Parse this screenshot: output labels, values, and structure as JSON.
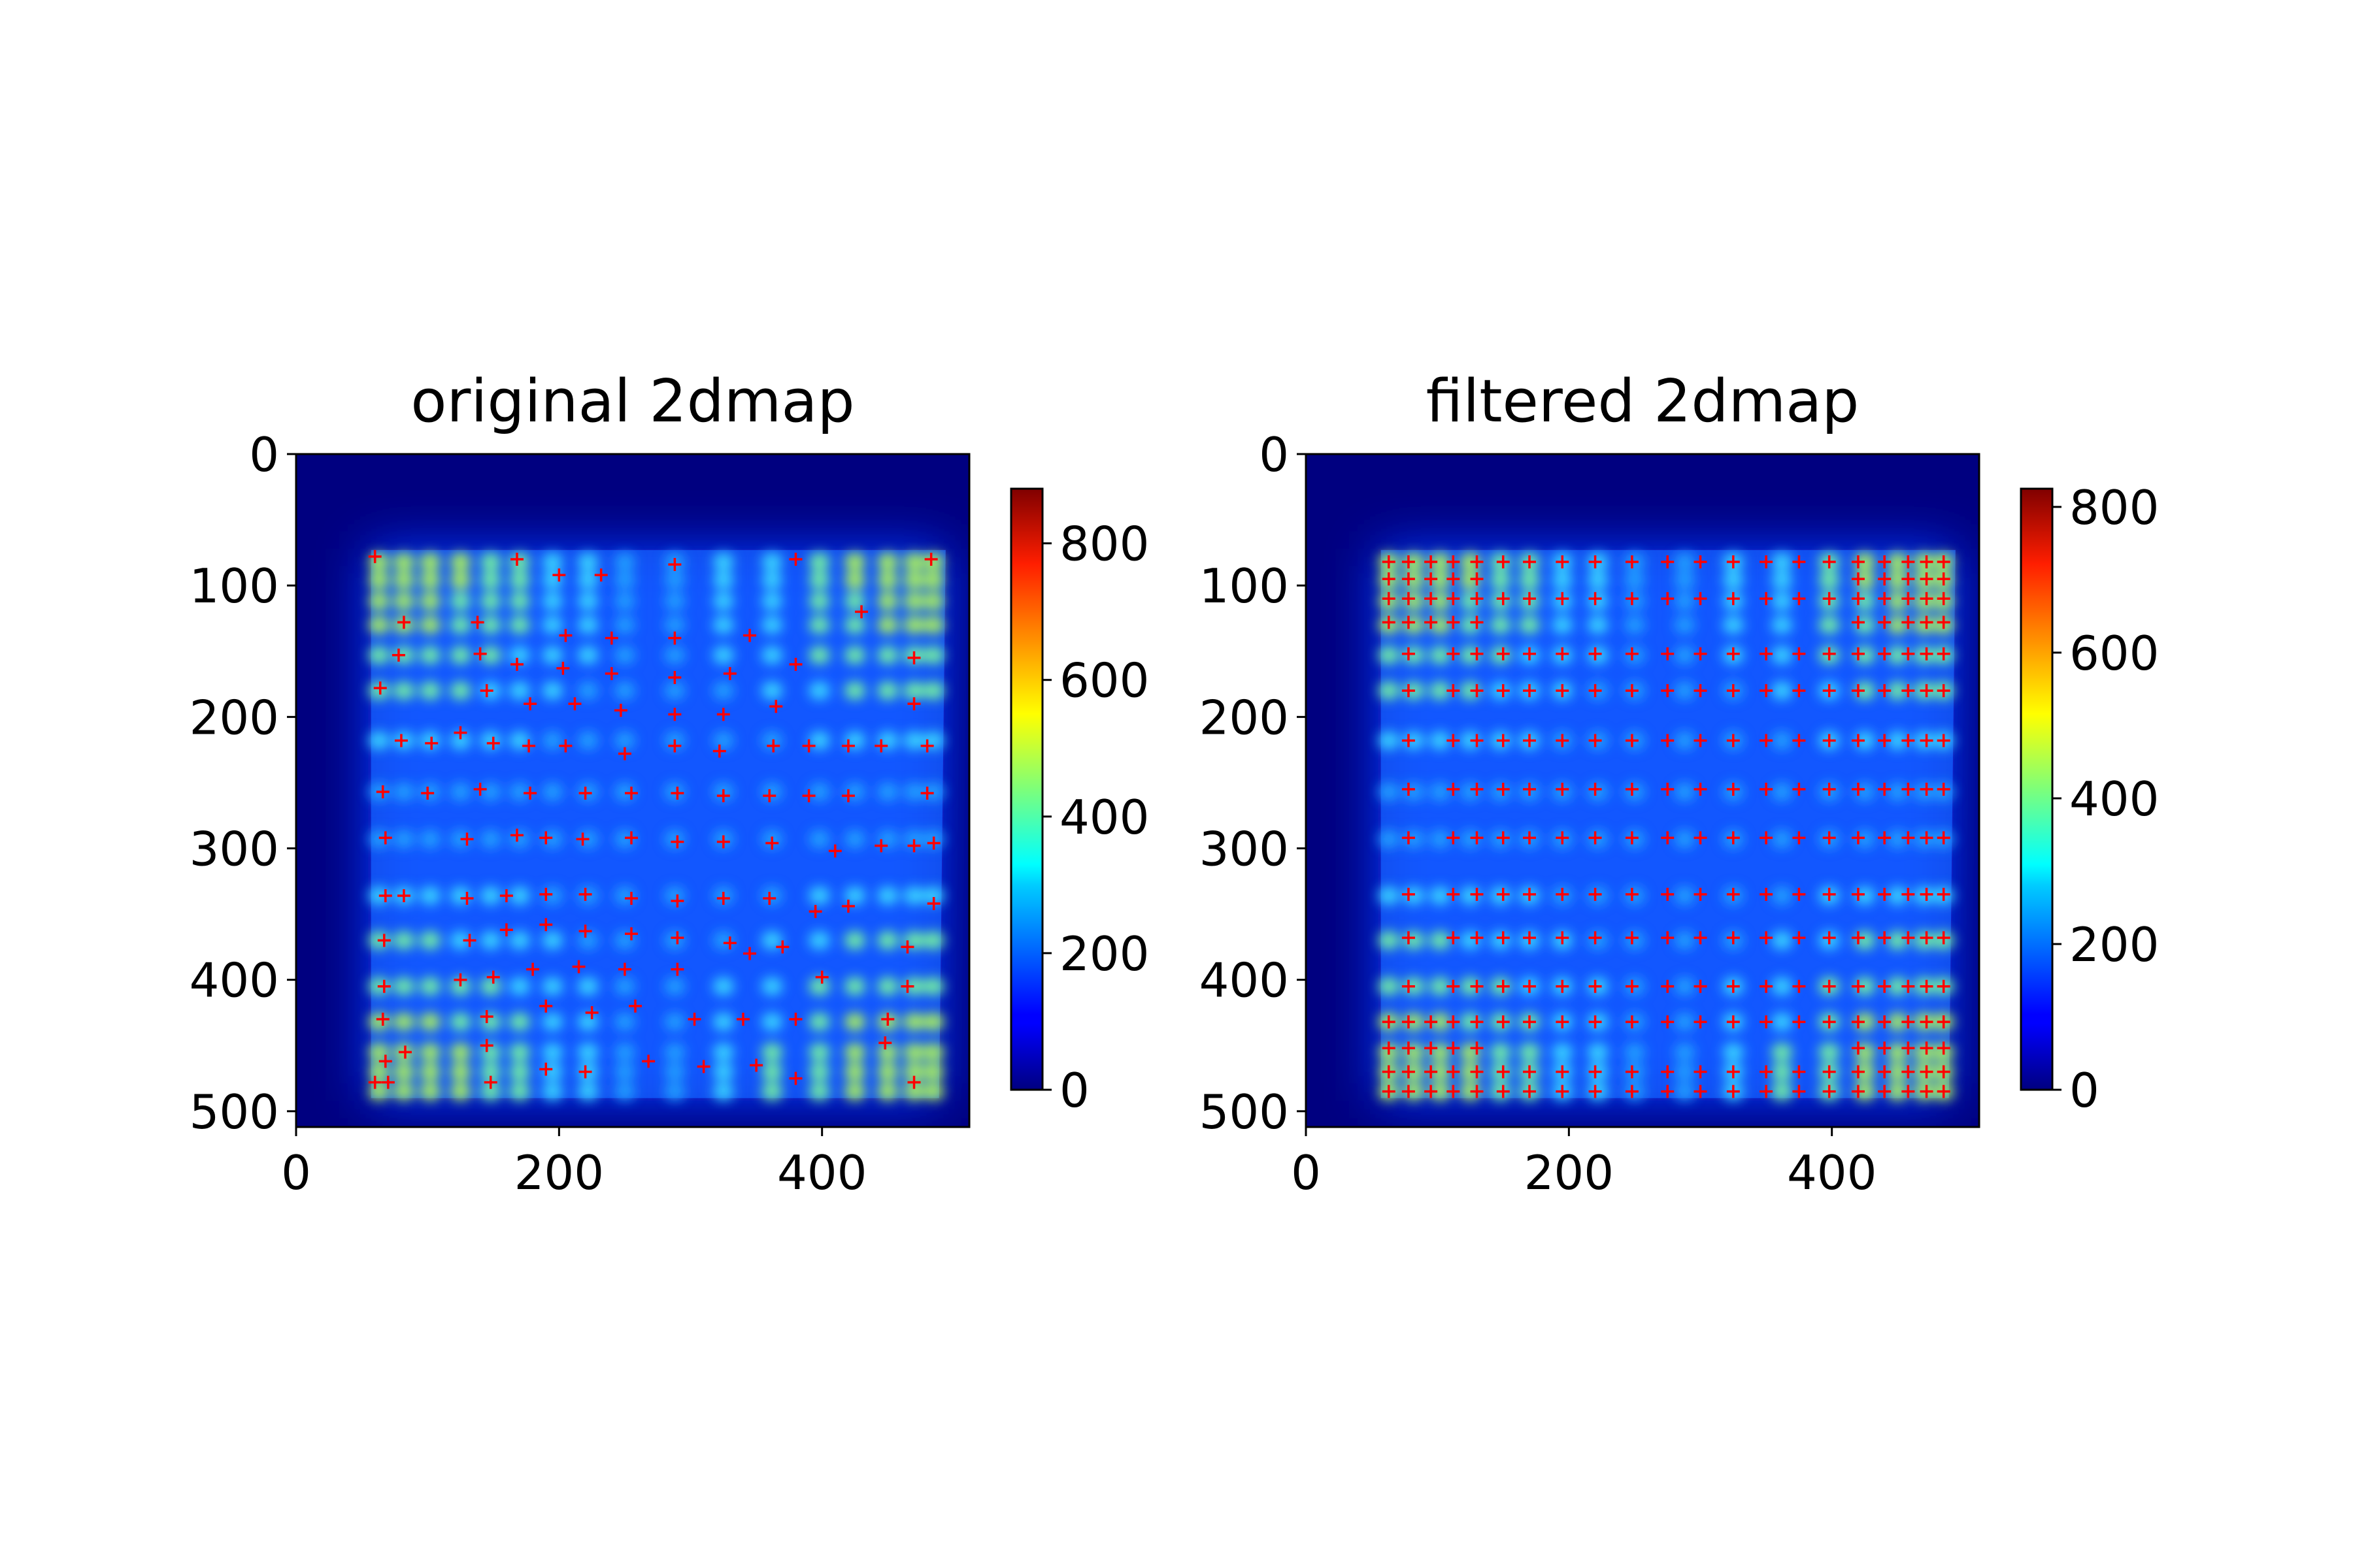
{
  "chart_data": [
    {
      "type": "heatmap",
      "title": "original 2dmap",
      "xlabel": "",
      "ylabel": "",
      "colormap": "jet",
      "xlim": [
        0,
        512
      ],
      "ylim": [
        512,
        0
      ],
      "xticks": [
        "0",
        "200",
        "400"
      ],
      "yticks": [
        "0",
        "100",
        "200",
        "300",
        "400",
        "500"
      ],
      "colorbar": {
        "range": [
          0,
          880
        ],
        "ticks": [
          "0",
          "200",
          "400",
          "600",
          "800"
        ]
      },
      "marker_color": "#ff0000",
      "markers": [
        [
          60,
          78
        ],
        [
          168,
          80
        ],
        [
          380,
          80
        ],
        [
          483,
          80
        ],
        [
          200,
          92
        ],
        [
          232,
          92
        ],
        [
          288,
          84
        ],
        [
          82,
          128
        ],
        [
          138,
          128
        ],
        [
          205,
          138
        ],
        [
          240,
          140
        ],
        [
          288,
          140
        ],
        [
          345,
          138
        ],
        [
          430,
          120
        ],
        [
          470,
          155
        ],
        [
          78,
          153
        ],
        [
          140,
          152
        ],
        [
          168,
          160
        ],
        [
          203,
          163
        ],
        [
          240,
          167
        ],
        [
          288,
          170
        ],
        [
          330,
          167
        ],
        [
          380,
          160
        ],
        [
          64,
          178
        ],
        [
          145,
          180
        ],
        [
          178,
          190
        ],
        [
          212,
          190
        ],
        [
          247,
          195
        ],
        [
          288,
          198
        ],
        [
          325,
          198
        ],
        [
          365,
          192
        ],
        [
          470,
          190
        ],
        [
          80,
          218
        ],
        [
          103,
          220
        ],
        [
          125,
          212
        ],
        [
          150,
          220
        ],
        [
          177,
          222
        ],
        [
          205,
          222
        ],
        [
          250,
          228
        ],
        [
          288,
          222
        ],
        [
          322,
          226
        ],
        [
          363,
          222
        ],
        [
          390,
          222
        ],
        [
          420,
          222
        ],
        [
          445,
          222
        ],
        [
          480,
          222
        ],
        [
          66,
          257
        ],
        [
          100,
          258
        ],
        [
          140,
          255
        ],
        [
          178,
          258
        ],
        [
          220,
          258
        ],
        [
          255,
          258
        ],
        [
          290,
          258
        ],
        [
          325,
          260
        ],
        [
          360,
          260
        ],
        [
          390,
          260
        ],
        [
          420,
          260
        ],
        [
          480,
          258
        ],
        [
          68,
          292
        ],
        [
          130,
          293
        ],
        [
          168,
          290
        ],
        [
          190,
          292
        ],
        [
          218,
          293
        ],
        [
          255,
          292
        ],
        [
          290,
          295
        ],
        [
          325,
          295
        ],
        [
          362,
          296
        ],
        [
          410,
          302
        ],
        [
          445,
          298
        ],
        [
          470,
          298
        ],
        [
          485,
          296
        ],
        [
          68,
          336
        ],
        [
          82,
          336
        ],
        [
          130,
          338
        ],
        [
          160,
          336
        ],
        [
          190,
          335
        ],
        [
          220,
          335
        ],
        [
          255,
          338
        ],
        [
          290,
          340
        ],
        [
          325,
          338
        ],
        [
          360,
          338
        ],
        [
          395,
          348
        ],
        [
          420,
          344
        ],
        [
          485,
          342
        ],
        [
          67,
          370
        ],
        [
          132,
          370
        ],
        [
          160,
          362
        ],
        [
          190,
          358
        ],
        [
          220,
          363
        ],
        [
          255,
          365
        ],
        [
          290,
          368
        ],
        [
          330,
          372
        ],
        [
          370,
          375
        ],
        [
          465,
          375
        ],
        [
          67,
          405
        ],
        [
          125,
          400
        ],
        [
          150,
          398
        ],
        [
          180,
          392
        ],
        [
          215,
          390
        ],
        [
          250,
          392
        ],
        [
          290,
          392
        ],
        [
          345,
          380
        ],
        [
          400,
          398
        ],
        [
          465,
          405
        ],
        [
          66,
          430
        ],
        [
          145,
          428
        ],
        [
          190,
          420
        ],
        [
          225,
          425
        ],
        [
          258,
          420
        ],
        [
          303,
          430
        ],
        [
          340,
          430
        ],
        [
          380,
          430
        ],
        [
          450,
          430
        ],
        [
          68,
          462
        ],
        [
          83,
          455
        ],
        [
          145,
          450
        ],
        [
          268,
          462
        ],
        [
          310,
          466
        ],
        [
          350,
          465
        ],
        [
          448,
          448
        ],
        [
          60,
          478
        ],
        [
          70,
          478
        ],
        [
          148,
          478
        ],
        [
          190,
          468
        ],
        [
          220,
          470
        ],
        [
          380,
          475
        ],
        [
          470,
          478
        ]
      ]
    },
    {
      "type": "heatmap",
      "title": "filtered 2dmap",
      "xlabel": "",
      "ylabel": "",
      "colormap": "jet",
      "xlim": [
        0,
        512
      ],
      "ylim": [
        512,
        0
      ],
      "xticks": [
        "0",
        "200",
        "400"
      ],
      "yticks": [
        "0",
        "100",
        "200",
        "300",
        "400",
        "500"
      ],
      "colorbar": {
        "range": [
          0,
          825
        ],
        "ticks": [
          "0",
          "200",
          "400",
          "600",
          "800"
        ]
      },
      "marker_color": "#ff0000",
      "marker_grid": {
        "cols": [
          63,
          78,
          95,
          112,
          130,
          150,
          170,
          195,
          220,
          248,
          275,
          300,
          325,
          350,
          375,
          398,
          420,
          440,
          458,
          472,
          485
        ],
        "rows": [
          82,
          95,
          110,
          128,
          152,
          180,
          218,
          255,
          292,
          335,
          368,
          405,
          432,
          452,
          470,
          485
        ]
      },
      "markers": []
    }
  ]
}
